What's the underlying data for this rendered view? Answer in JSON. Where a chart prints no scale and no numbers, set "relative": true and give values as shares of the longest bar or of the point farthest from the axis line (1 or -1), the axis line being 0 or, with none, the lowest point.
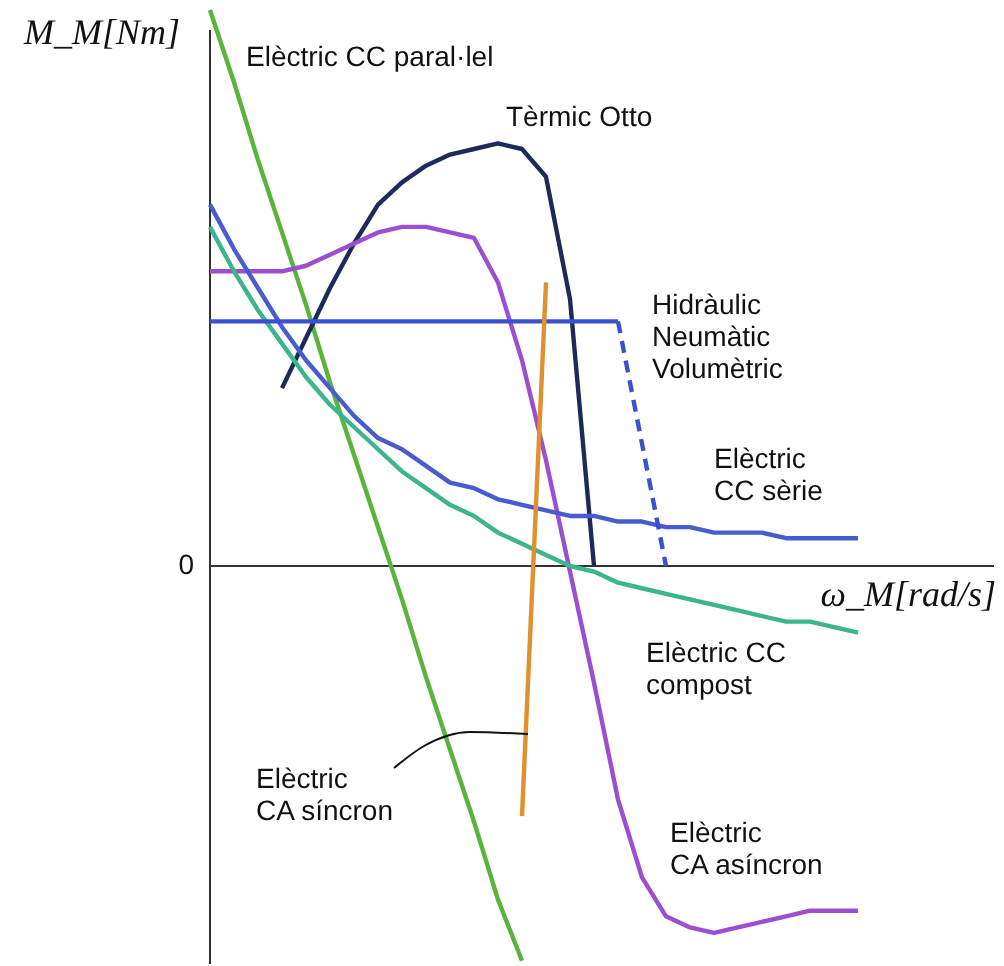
{
  "chart_data": {
    "type": "line",
    "relative": true,
    "xlabel": "ω_M[rad/s]",
    "ylabel": "M_M[Nm]",
    "categories": [
      null,
      null,
      null,
      null,
      null,
      null,
      null,
      null,
      null,
      null,
      null,
      null,
      null,
      null,
      null,
      null,
      null,
      null,
      null,
      null,
      null,
      null,
      null,
      null,
      null,
      null,
      null,
      null,
      null
    ],
    "annotations": [
      "0"
    ],
    "series": [
      {
        "name": "Elèctric CC paral·lel",
        "color": "#5ab43c",
        "values": [
          1.0,
          0.87,
          0.73,
          0.6,
          0.47,
          0.33,
          0.2,
          0.07,
          -0.06,
          -0.2,
          -0.33,
          -0.46,
          -0.6,
          -0.71,
          null,
          null,
          null,
          null,
          null,
          null,
          null,
          null,
          null,
          null,
          null,
          null,
          null,
          null,
          null
        ]
      },
      {
        "name": "Tèrmic Otto",
        "color": "#1e2a5a",
        "values": [
          null,
          null,
          null,
          0.32,
          0.41,
          0.5,
          0.58,
          0.65,
          0.69,
          0.72,
          0.74,
          0.75,
          0.76,
          0.75,
          0.7,
          0.48,
          0.0,
          null,
          null,
          null,
          null,
          null,
          null,
          null,
          null,
          null,
          null,
          null,
          null
        ]
      },
      {
        "name": "Elèctric\nCA asíncron",
        "color": "#9b4fd0",
        "values": [
          0.53,
          0.53,
          0.53,
          0.53,
          0.54,
          0.56,
          0.58,
          0.6,
          0.61,
          0.61,
          0.6,
          0.59,
          0.51,
          0.37,
          0.19,
          -0.01,
          -0.21,
          -0.42,
          -0.56,
          -0.63,
          -0.65,
          -0.66,
          -0.65,
          -0.64,
          -0.63,
          -0.62,
          -0.62,
          -0.62,
          null
        ]
      },
      {
        "name": "Elèctric\nCC sèrie",
        "color": "#4a5bd0",
        "values": [
          0.65,
          0.57,
          0.5,
          0.43,
          0.37,
          0.32,
          0.27,
          0.23,
          0.21,
          0.18,
          0.15,
          0.14,
          0.12,
          0.11,
          0.1,
          0.09,
          0.09,
          0.08,
          0.08,
          0.07,
          0.07,
          0.06,
          0.06,
          0.06,
          0.05,
          0.05,
          0.05,
          0.05,
          null
        ]
      },
      {
        "name": "Elèctric CC\ncompost",
        "color": "#3cb48c",
        "values": [
          0.61,
          0.53,
          0.46,
          0.4,
          0.34,
          0.29,
          0.25,
          0.21,
          0.17,
          0.14,
          0.11,
          0.09,
          0.06,
          0.04,
          0.02,
          0.0,
          -0.01,
          -0.03,
          -0.04,
          -0.05,
          -0.06,
          -0.07,
          -0.08,
          -0.09,
          -0.1,
          -0.1,
          -0.11,
          -0.12,
          null
        ]
      },
      {
        "name": "Hidràulic\nNeumàtic\nVolumètric",
        "color": "#3c50d2",
        "values": [
          0.44,
          0.44,
          0.44,
          0.44,
          0.44,
          0.44,
          0.44,
          0.44,
          0.44,
          0.44,
          0.44,
          0.44,
          0.44,
          0.44,
          0.44,
          0.44,
          0.44,
          0.44,
          null,
          null,
          null,
          null,
          null,
          null,
          null,
          null,
          null,
          null,
          null
        ]
      },
      {
        "color": "#3c50d2",
        "line_style": "dashed",
        "values": [
          null,
          null,
          null,
          null,
          null,
          null,
          null,
          null,
          null,
          null,
          null,
          null,
          null,
          null,
          null,
          null,
          null,
          0.44,
          0.22,
          0.0,
          null,
          null,
          null,
          null,
          null,
          null,
          null,
          null,
          null
        ]
      },
      {
        "name": "Elèctric\nCA síncron",
        "color": "#e0902c",
        "values": [
          null,
          null,
          null,
          null,
          null,
          null,
          null,
          null,
          null,
          null,
          null,
          null,
          null,
          -0.45,
          0.51,
          null,
          null,
          null,
          null,
          null,
          null,
          null,
          null,
          null,
          null,
          null,
          null,
          null,
          null
        ]
      }
    ]
  }
}
